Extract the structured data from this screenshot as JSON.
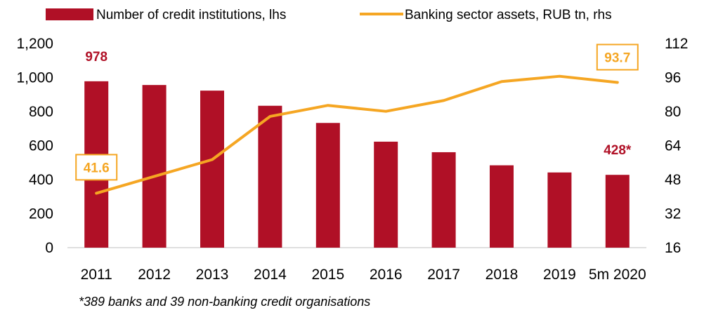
{
  "colors": {
    "bar": "#B01026",
    "line": "#F5A623",
    "axis": "#BFBFBF"
  },
  "legend": {
    "bars_label": "Number of credit institutions, lhs",
    "line_label": "Banking sector assets, RUB tn, rhs"
  },
  "footnote": "*389 banks and 39 non-banking credit organisations",
  "chart_data": {
    "type": "bar",
    "categories": [
      "2011",
      "2012",
      "2013",
      "2014",
      "2015",
      "2016",
      "2017",
      "2018",
      "2019",
      "5m 2020"
    ],
    "series": [
      {
        "name": "Number of credit institutions, lhs",
        "type": "bar",
        "axis": "left",
        "values": [
          978,
          956,
          923,
          834,
          733,
          623,
          561,
          484,
          442,
          428
        ]
      },
      {
        "name": "Banking sector assets, RUB tn, rhs",
        "type": "line",
        "axis": "right",
        "values": [
          41.6,
          49.5,
          57.4,
          77.7,
          82.9,
          80.1,
          85.2,
          94.1,
          96.6,
          93.7
        ]
      }
    ],
    "y_left": {
      "min": 0,
      "max": 1200,
      "ticks": [
        "0",
        "200",
        "400",
        "600",
        "800",
        "1,000",
        "1,200"
      ]
    },
    "y_right": {
      "min": 16,
      "max": 112,
      "ticks": [
        "16",
        "32",
        "48",
        "64",
        "80",
        "96",
        "112"
      ]
    },
    "data_labels": [
      {
        "series": 0,
        "index": 0,
        "text": "978"
      },
      {
        "series": 0,
        "index": 9,
        "text": "428*"
      },
      {
        "series": 1,
        "index": 0,
        "text": "41.6",
        "boxed": true
      },
      {
        "series": 1,
        "index": 9,
        "text": "93.7",
        "boxed": true
      }
    ],
    "grid": false,
    "legend_position": "top"
  }
}
